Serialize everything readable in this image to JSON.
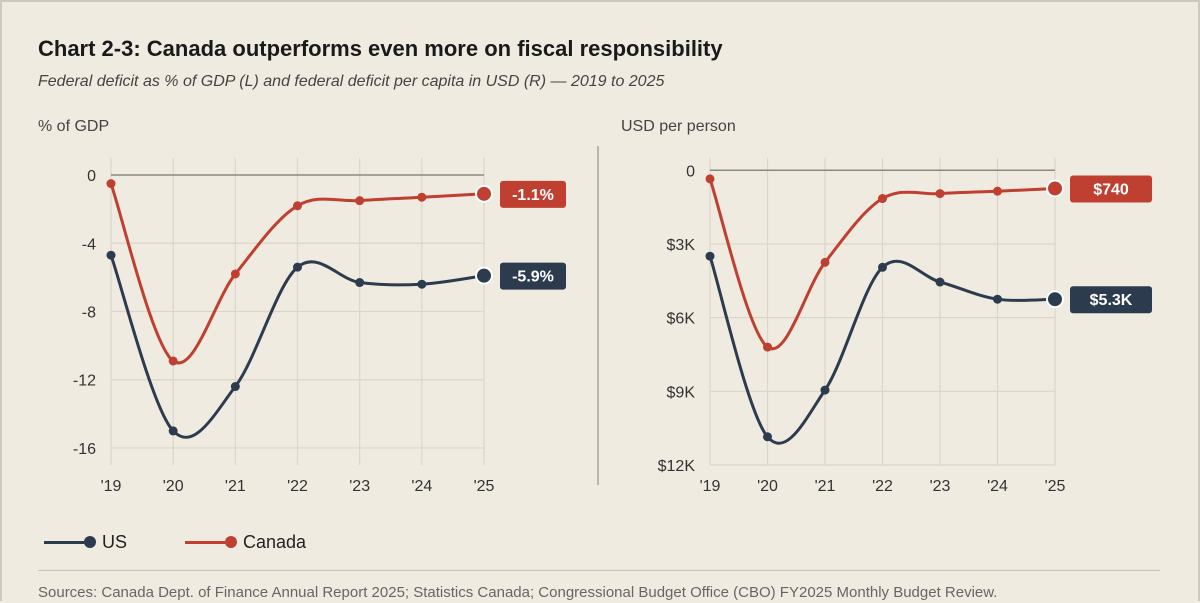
{
  "title": "Chart 2-3: Canada outperforms even more on fiscal responsibility",
  "subtitle": "Federal deficit as % of GDP (L) and federal deficit per capita in USD (R) — 2019 to 2025",
  "source": "Sources: Canada Dept. of Finance Annual Report 2025; Statistics Canada; Congressional Budget Office (CBO) FY2025 Monthly Budget Review.",
  "legend": [
    {
      "name": "US",
      "color": "#2d3b4e"
    },
    {
      "name": "Canada",
      "color": "#bf4031"
    }
  ],
  "chart_data": [
    {
      "type": "line",
      "title": "",
      "ylabel": "% of GDP",
      "xlabel": "",
      "categories": [
        "'19",
        "'20",
        "'21",
        "'22",
        "'23",
        "'24",
        "'25"
      ],
      "ylim": [
        -17,
        1
      ],
      "yticks": [
        0,
        -4,
        -8,
        -12,
        -16
      ],
      "ytick_labels": [
        "0",
        "-4",
        "-8",
        "-12",
        "-16"
      ],
      "series": [
        {
          "name": "US",
          "color": "#2d3b4e",
          "values": [
            -4.7,
            -15.0,
            -12.4,
            -5.4,
            -6.3,
            -6.4,
            -5.9
          ],
          "end_label": "-5.9%"
        },
        {
          "name": "Canada",
          "color": "#bf4031",
          "values": [
            -0.5,
            -10.9,
            -5.8,
            -1.8,
            -1.5,
            -1.3,
            -1.1
          ],
          "end_label": "-1.1%"
        }
      ]
    },
    {
      "type": "line",
      "title": "",
      "ylabel": "USD per person",
      "xlabel": "",
      "categories": [
        "'19",
        "'20",
        "'21",
        "'22",
        "'23",
        "'24",
        "'25"
      ],
      "ylim": [
        -12000,
        500
      ],
      "yticks": [
        0,
        -3000,
        -6000,
        -9000,
        -12000
      ],
      "ytick_labels": [
        "0",
        "$3K",
        "$6K",
        "$9K",
        "$12K"
      ],
      "series": [
        {
          "name": "US",
          "color": "#2d3b4e",
          "values": [
            -3500,
            -10850,
            -8950,
            -3950,
            -4550,
            -5250,
            -5250
          ],
          "end_label": "$5.3K"
        },
        {
          "name": "Canada",
          "color": "#bf4031",
          "values": [
            -350,
            -7200,
            -3750,
            -1150,
            -950,
            -850,
            -740
          ],
          "end_label": "$740"
        }
      ]
    }
  ]
}
